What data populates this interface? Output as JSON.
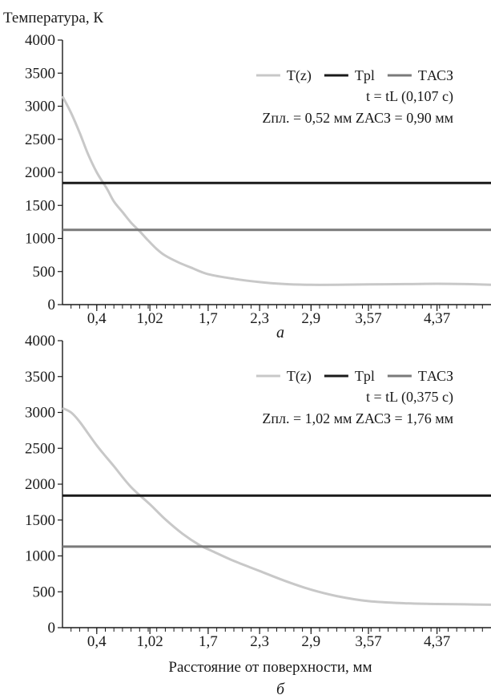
{
  "chart_data": [
    {
      "type": "line",
      "panel_label": "а",
      "ylabel": "Температура, К",
      "xlabel": "",
      "x_ticks": [
        "0,4",
        "1,02",
        "1,7",
        "2,3",
        "2,9",
        "3,57",
        "4,37"
      ],
      "x_tick_values": [
        0.4,
        1.02,
        1.7,
        2.3,
        2.9,
        3.57,
        4.37
      ],
      "xlim": [
        0,
        5.0
      ],
      "ylim": [
        0,
        4000
      ],
      "y_ticks": [
        0,
        500,
        1000,
        1500,
        2000,
        2500,
        3000,
        3500,
        4000
      ],
      "grid": false,
      "legend_position": "top-right",
      "annotations": [
        "t = tL (0,107 с)",
        "Zпл. = 0,52 мм ZАСЗ = 0,90 мм"
      ],
      "series": [
        {
          "name": "T(z)",
          "color": "#c8c8c8",
          "x": [
            0,
            0.1,
            0.2,
            0.3,
            0.4,
            0.52,
            0.6,
            0.7,
            0.8,
            0.9,
            1.0,
            1.1,
            1.2,
            1.35,
            1.5,
            1.7,
            2.0,
            2.3,
            2.6,
            2.9,
            3.2,
            3.57,
            4.0,
            4.37,
            4.7,
            5.0
          ],
          "y": [
            3150,
            2900,
            2600,
            2270,
            2000,
            1750,
            1560,
            1400,
            1240,
            1110,
            970,
            840,
            740,
            640,
            560,
            460,
            390,
            340,
            310,
            300,
            300,
            305,
            310,
            315,
            310,
            300
          ]
        },
        {
          "name": "Tpl",
          "color": "#1a1a1a",
          "x": [
            0,
            5.0
          ],
          "y": [
            1840,
            1840
          ]
        },
        {
          "name": "TАСЗ",
          "color": "#7a7a7a",
          "x": [
            0,
            5.0
          ],
          "y": [
            1130,
            1130
          ]
        }
      ]
    },
    {
      "type": "line",
      "panel_label": "б",
      "ylabel": "",
      "xlabel": "Расстояние от поверхности, мм",
      "x_ticks": [
        "0,4",
        "1,02",
        "1,7",
        "2,3",
        "2,9",
        "3,57",
        "4,37"
      ],
      "x_tick_values": [
        0.4,
        1.02,
        1.7,
        2.3,
        2.9,
        3.57,
        4.37
      ],
      "xlim": [
        0,
        5.0
      ],
      "ylim": [
        0,
        4000
      ],
      "y_ticks": [
        0,
        500,
        1000,
        1500,
        2000,
        2500,
        3000,
        3500,
        4000
      ],
      "grid": false,
      "legend_position": "top-right",
      "annotations": [
        "t = tL (0,375 с)",
        "Zпл. = 1,02 мм ZАСЗ = 1,76 мм"
      ],
      "series": [
        {
          "name": "T(z)",
          "color": "#c8c8c8",
          "x": [
            0,
            0.1,
            0.2,
            0.4,
            0.6,
            0.8,
            1.02,
            1.2,
            1.4,
            1.6,
            1.76,
            2.0,
            2.3,
            2.6,
            2.9,
            3.2,
            3.57,
            4.0,
            4.37,
            4.7,
            5.0
          ],
          "y": [
            3060,
            3000,
            2870,
            2540,
            2250,
            1960,
            1720,
            1510,
            1310,
            1150,
            1060,
            930,
            790,
            650,
            530,
            440,
            370,
            340,
            330,
            325,
            320
          ]
        },
        {
          "name": "Tpl",
          "color": "#1a1a1a",
          "x": [
            0,
            5.0
          ],
          "y": [
            1840,
            1840
          ]
        },
        {
          "name": "TАСЗ",
          "color": "#7a7a7a",
          "x": [
            0,
            5.0
          ],
          "y": [
            1130,
            1130
          ]
        }
      ]
    }
  ]
}
